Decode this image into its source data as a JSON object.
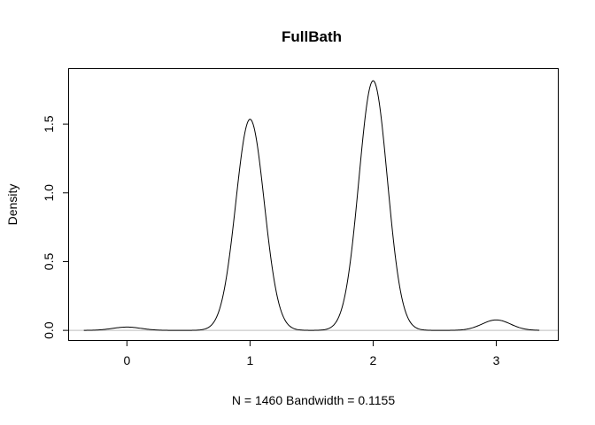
{
  "chart_data": {
    "type": "line",
    "title": "FullBath",
    "xlabel": "N = 1460   Bandwidth = 0.1155",
    "ylabel": "Density",
    "xlim": [
      -0.47,
      3.5
    ],
    "ylim": [
      -0.07,
      1.9
    ],
    "x_ticks": [
      "0",
      "1",
      "2",
      "3"
    ],
    "y_ticks": [
      "0.0",
      "0.5",
      "1.0",
      "1.5"
    ],
    "baseline": 0,
    "grid": false,
    "legend": "none",
    "bandwidth": 0.1155,
    "n": 1460,
    "support": [
      -0.35,
      3.35
    ],
    "series": [
      {
        "components": [
          {
            "center": 0,
            "height": 0.024
          },
          {
            "center": 1,
            "height": 1.535
          },
          {
            "center": 2,
            "height": 1.815
          },
          {
            "center": 3,
            "height": 0.076
          }
        ]
      }
    ]
  }
}
